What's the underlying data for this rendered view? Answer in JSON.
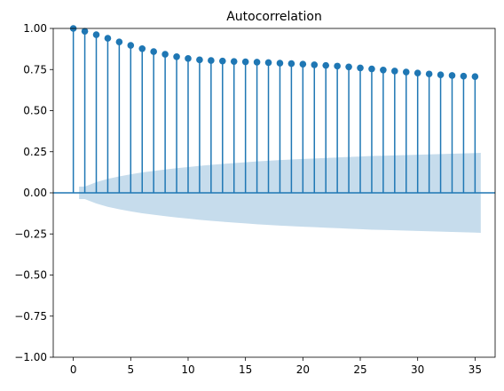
{
  "chart_data": {
    "type": "stem",
    "title": "Autocorrelation",
    "xlabel": "",
    "ylabel": "",
    "xlim": [
      -1.75,
      36.75
    ],
    "ylim": [
      -1.0,
      1.0
    ],
    "xticks": [
      0,
      5,
      10,
      15,
      20,
      25,
      30,
      35
    ],
    "xtick_labels": [
      "0",
      "5",
      "10",
      "15",
      "20",
      "25",
      "30",
      "35"
    ],
    "yticks": [
      -1.0,
      -0.75,
      -0.5,
      -0.25,
      0.0,
      0.25,
      0.5,
      0.75,
      1.0
    ],
    "ytick_labels": [
      "−1.00",
      "−0.75",
      "−0.50",
      "−0.25",
      "0.00",
      "0.25",
      "0.50",
      "0.75",
      "1.00"
    ],
    "lags": [
      0,
      1,
      2,
      3,
      4,
      5,
      6,
      7,
      8,
      9,
      10,
      11,
      12,
      13,
      14,
      15,
      16,
      17,
      18,
      19,
      20,
      21,
      22,
      23,
      24,
      25,
      26,
      27,
      28,
      29,
      30,
      31,
      32,
      33,
      34,
      35
    ],
    "values": [
      1.0,
      0.983,
      0.962,
      0.94,
      0.918,
      0.897,
      0.877,
      0.859,
      0.843,
      0.828,
      0.817,
      0.809,
      0.805,
      0.802,
      0.799,
      0.797,
      0.795,
      0.792,
      0.789,
      0.786,
      0.783,
      0.779,
      0.775,
      0.771,
      0.766,
      0.76,
      0.754,
      0.747,
      0.741,
      0.735,
      0.729,
      0.723,
      0.718,
      0.714,
      0.71,
      0.707
    ],
    "confidence_band": {
      "x": [
        0.5,
        1,
        2,
        3,
        4,
        5,
        6,
        7,
        8,
        9,
        10,
        11,
        12,
        13,
        14,
        15,
        16,
        17,
        18,
        19,
        20,
        21,
        22,
        23,
        24,
        25,
        26,
        27,
        28,
        29,
        30,
        31,
        32,
        33,
        34,
        35,
        35.5
      ],
      "half_width": [
        0.038,
        0.038,
        0.065,
        0.085,
        0.1,
        0.113,
        0.124,
        0.133,
        0.142,
        0.15,
        0.157,
        0.164,
        0.17,
        0.176,
        0.181,
        0.186,
        0.191,
        0.195,
        0.199,
        0.203,
        0.206,
        0.209,
        0.212,
        0.215,
        0.218,
        0.221,
        0.224,
        0.226,
        0.228,
        0.23,
        0.232,
        0.234,
        0.236,
        0.238,
        0.24,
        0.242,
        0.243
      ]
    },
    "grid": false,
    "legend": "none",
    "colors": {
      "stem": "#1f77b4",
      "band": "#c6dcec",
      "zero_line": "#1f77b4",
      "axes": "#000000"
    }
  }
}
